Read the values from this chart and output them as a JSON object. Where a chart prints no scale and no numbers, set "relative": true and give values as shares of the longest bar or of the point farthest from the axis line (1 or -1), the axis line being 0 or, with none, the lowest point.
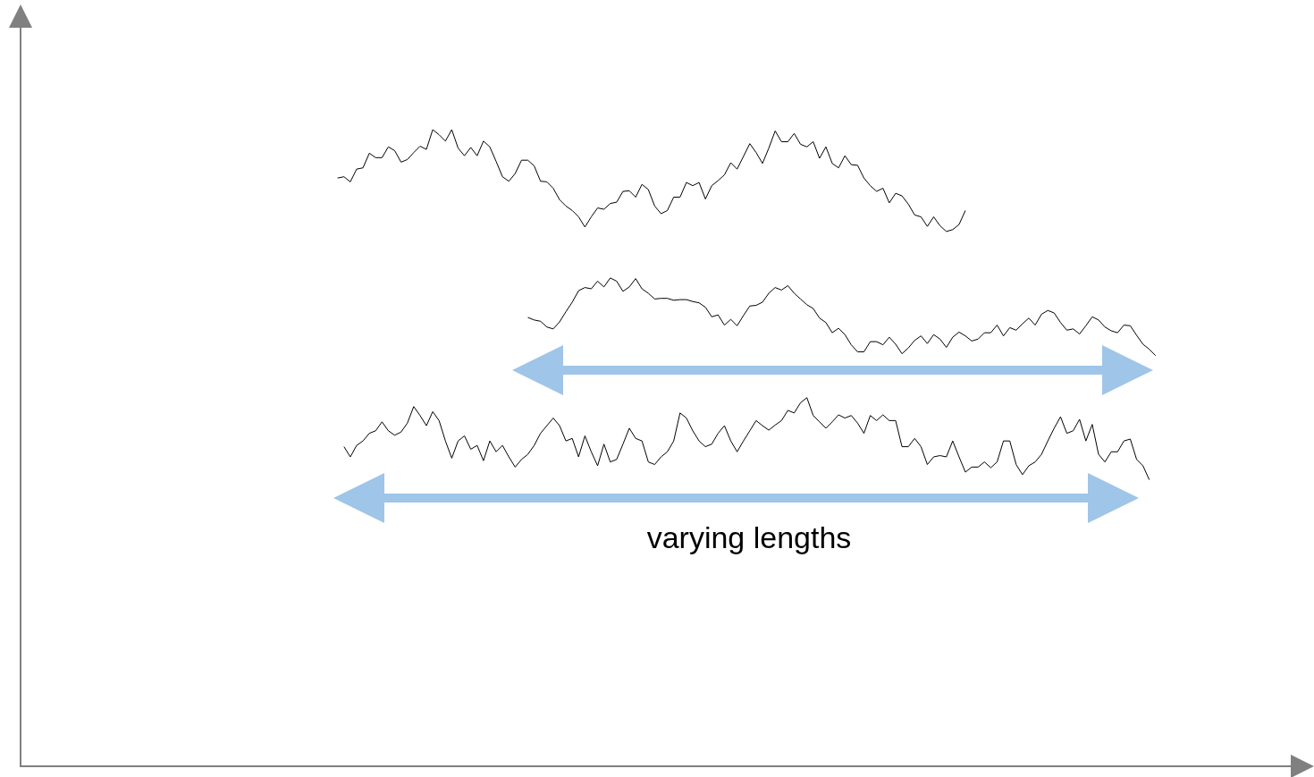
{
  "chart_data": {
    "type": "line",
    "relative": true,
    "categories": [
      null,
      null,
      null,
      null,
      null,
      null,
      null,
      null,
      null,
      null,
      null,
      null,
      null,
      null,
      null,
      null,
      null,
      null,
      null,
      null,
      null,
      null,
      null,
      null,
      null,
      null,
      null,
      null,
      null,
      null,
      null,
      null,
      null,
      null,
      null,
      null,
      null,
      null,
      null,
      null,
      null,
      null,
      null,
      null,
      null,
      null,
      null,
      null,
      null,
      null,
      null,
      null,
      null,
      null,
      null,
      null,
      null,
      null,
      null,
      null,
      null,
      null,
      null,
      null,
      null,
      null,
      null,
      null,
      null,
      null,
      null,
      null,
      null,
      null,
      null,
      null,
      null,
      null,
      null,
      null,
      null,
      null,
      null,
      null,
      null,
      null,
      null,
      null,
      null,
      null,
      null,
      null,
      null,
      null,
      null,
      null,
      null,
      null,
      null,
      null,
      null,
      null,
      null,
      null,
      null,
      null,
      null,
      null,
      null,
      null,
      null,
      null,
      null,
      null,
      null,
      null,
      null,
      null,
      null,
      null,
      null,
      null,
      null,
      null,
      null,
      null,
      null,
      null,
      null,
      null,
      null,
      null,
      null,
      null,
      null,
      null,
      null,
      null,
      null,
      null,
      null,
      null,
      null,
      null,
      null,
      null,
      null,
      null,
      null,
      null,
      null,
      null,
      null,
      null,
      null,
      null,
      null,
      null,
      null,
      null,
      null,
      null,
      null,
      null,
      null,
      null,
      null,
      null,
      null,
      null,
      null,
      null,
      null,
      null,
      null,
      null,
      null,
      null,
      null,
      null,
      null,
      null,
      null,
      null,
      null,
      null,
      null,
      null,
      null,
      null,
      null,
      null,
      null,
      null,
      null,
      null,
      null,
      null,
      null,
      null,
      null,
      null,
      null
    ],
    "series": [
      {
        "color": "#000000",
        "values": [
          null,
          null,
          null,
          null,
          null,
          null,
          null,
          null,
          null,
          null,
          null,
          null,
          null,
          null,
          null,
          null,
          null,
          null,
          null,
          null,
          null,
          null,
          null,
          null,
          null,
          null,
          null,
          null,
          null,
          null,
          null,
          null,
          null,
          null,
          null,
          null,
          null,
          null,
          null,
          null,
          null,
          null,
          null,
          null,
          null,
          null,
          null,
          null,
          null,
          null,
          0.924,
          0.926,
          0.918,
          0.938,
          0.94,
          0.963,
          0.956,
          0.956,
          0.973,
          0.967,
          0.949,
          0.953,
          0.964,
          0.974,
          0.969,
          1.0,
          0.992,
          0.982,
          1.0,
          0.971,
          0.959,
          0.972,
          0.959,
          0.982,
          0.973,
          0.95,
          0.926,
          0.919,
          0.931,
          0.952,
          0.952,
          0.943,
          0.919,
          0.918,
          0.908,
          0.89,
          0.88,
          0.873,
          0.863,
          0.847,
          0.863,
          0.877,
          0.875,
          0.884,
          0.886,
          0.903,
          0.904,
          0.894,
          0.914,
          0.906,
          0.88,
          0.868,
          0.873,
          0.894,
          0.894,
          0.917,
          0.912,
          0.917,
          0.891,
          0.912,
          0.92,
          0.929,
          0.948,
          0.938,
          0.958,
          0.978,
          0.964,
          0.947,
          0.971,
          0.998,
          0.981,
          0.981,
          0.994,
          0.977,
          0.973,
          0.981,
          0.955,
          0.973,
          0.947,
          0.94,
          0.959,
          0.945,
          0.944,
          0.924,
          0.912,
          0.903,
          0.908,
          0.885,
          0.9,
          0.896,
          0.883,
          0.866,
          0.863,
          0.848,
          0.863,
          0.849,
          0.84,
          0.843,
          0.851,
          0.873,
          null,
          null,
          null,
          null,
          null,
          null,
          null,
          null,
          null,
          null,
          null,
          null,
          null,
          null,
          null,
          null,
          null,
          null,
          null,
          null,
          null,
          null,
          null,
          null,
          null,
          null,
          null,
          null,
          null,
          null,
          null,
          null,
          null,
          null,
          null,
          null,
          null,
          null,
          null,
          null,
          null,
          null,
          null,
          null,
          null,
          null,
          null,
          null,
          null,
          null,
          null,
          null,
          null
        ]
      },
      {
        "color": "#000000",
        "values": [
          null,
          null,
          null,
          null,
          null,
          null,
          null,
          null,
          null,
          null,
          null,
          null,
          null,
          null,
          null,
          null,
          null,
          null,
          null,
          null,
          null,
          null,
          null,
          null,
          null,
          null,
          null,
          null,
          null,
          null,
          null,
          null,
          null,
          null,
          null,
          null,
          null,
          null,
          null,
          null,
          null,
          null,
          null,
          null,
          null,
          null,
          null,
          null,
          null,
          null,
          null,
          null,
          null,
          null,
          null,
          null,
          null,
          null,
          null,
          null,
          null,
          null,
          null,
          null,
          null,
          null,
          null,
          null,
          null,
          null,
          null,
          null,
          null,
          null,
          null,
          null,
          null,
          null,
          null,
          null,
          0.705,
          0.701,
          0.699,
          0.69,
          0.687,
          0.698,
          0.714,
          0.729,
          0.747,
          0.752,
          0.75,
          0.762,
          0.753,
          0.767,
          0.762,
          0.746,
          0.753,
          0.766,
          0.75,
          0.743,
          0.734,
          0.735,
          0.735,
          0.732,
          0.733,
          0.733,
          0.73,
          0.728,
          0.721,
          0.706,
          0.709,
          0.693,
          0.702,
          0.692,
          0.708,
          0.723,
          0.724,
          0.729,
          0.743,
          0.752,
          0.748,
          0.755,
          0.743,
          0.734,
          0.725,
          0.719,
          0.704,
          0.697,
          0.681,
          0.688,
          0.678,
          0.662,
          0.651,
          0.651,
          0.667,
          0.667,
          0.662,
          0.674,
          0.663,
          0.648,
          0.657,
          0.669,
          0.676,
          0.664,
          0.678,
          0.671,
          0.658,
          0.674,
          0.682,
          0.676,
          0.668,
          0.671,
          0.681,
          0.681,
          0.693,
          0.676,
          0.689,
          0.685,
          0.695,
          0.704,
          0.693,
          0.71,
          0.716,
          0.712,
          0.697,
          0.685,
          0.687,
          0.679,
          0.692,
          0.706,
          0.701,
          0.69,
          0.684,
          0.681,
          0.693,
          0.692,
          0.677,
          0.663,
          0.655,
          0.645,
          null,
          null,
          null,
          null,
          null,
          null,
          null,
          null,
          null,
          null,
          null,
          null,
          null,
          null,
          null,
          null,
          null,
          null,
          null,
          null,
          null,
          null,
          null
        ]
      },
      {
        "color": "#000000",
        "values": [
          null,
          null,
          null,
          null,
          null,
          null,
          null,
          null,
          null,
          null,
          null,
          null,
          null,
          null,
          null,
          null,
          null,
          null,
          null,
          null,
          null,
          null,
          null,
          null,
          null,
          null,
          null,
          null,
          null,
          null,
          null,
          null,
          null,
          null,
          null,
          null,
          null,
          null,
          null,
          null,
          null,
          null,
          null,
          null,
          null,
          null,
          null,
          null,
          null,
          null,
          null,
          0.502,
          0.486,
          0.504,
          0.511,
          0.523,
          0.527,
          0.541,
          0.527,
          0.52,
          0.525,
          0.539,
          0.565,
          0.551,
          0.535,
          0.557,
          0.543,
          0.511,
          0.484,
          0.511,
          0.519,
          0.498,
          0.504,
          0.48,
          0.511,
          0.494,
          0.504,
          0.486,
          0.47,
          0.482,
          0.49,
          0.504,
          0.523,
          0.535,
          0.547,
          0.535,
          0.511,
          0.515,
          0.486,
          0.519,
          0.494,
          0.472,
          0.506,
          0.478,
          0.482,
          0.506,
          0.531,
          0.515,
          0.511,
          0.478,
          0.474,
          0.486,
          0.494,
          0.511,
          0.555,
          0.547,
          0.527,
          0.511,
          0.502,
          0.506,
          0.523,
          0.535,
          0.511,
          0.494,
          0.511,
          0.527,
          0.543,
          0.535,
          0.528,
          0.536,
          0.543,
          0.559,
          0.555,
          0.571,
          0.579,
          0.551,
          0.541,
          0.531,
          0.541,
          0.552,
          0.547,
          0.551,
          0.539,
          0.523,
          0.551,
          0.543,
          0.552,
          0.543,
          0.543,
          0.502,
          0.502,
          0.515,
          0.502,
          0.474,
          0.486,
          0.488,
          0.486,
          0.511,
          0.486,
          0.462,
          0.47,
          0.47,
          0.478,
          0.469,
          0.478,
          0.511,
          0.511,
          0.474,
          0.458,
          0.472,
          0.478,
          0.49,
          0.511,
          0.531,
          0.549,
          0.523,
          0.527,
          0.545,
          0.511,
          0.537,
          0.49,
          0.478,
          0.494,
          0.494,
          0.511,
          0.514,
          0.482,
          0.472,
          0.45,
          null,
          null,
          null,
          null,
          null,
          null,
          null,
          null,
          null,
          null,
          null,
          null,
          null,
          null,
          null,
          null,
          null,
          null,
          null,
          null,
          null,
          null,
          null,
          null
        ]
      }
    ],
    "annotations": [
      "varying lengths"
    ]
  }
}
